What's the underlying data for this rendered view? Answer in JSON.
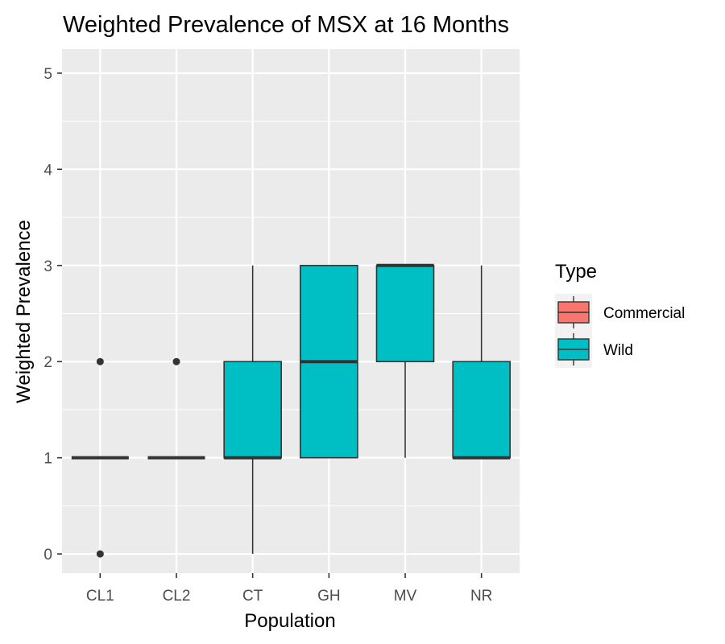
{
  "chart_data": {
    "type": "boxplot",
    "title": "Weighted Prevalence of MSX at 16 Months",
    "xlabel": "Population",
    "ylabel": "Weighted Prevalence",
    "ylim": [
      -0.2,
      5.25
    ],
    "yticks": [
      0,
      1,
      2,
      3,
      4,
      5
    ],
    "categories": [
      "CL1",
      "CL2",
      "CT",
      "GH",
      "MV",
      "NR"
    ],
    "grid": true,
    "legend": {
      "title": "Type",
      "position": "right",
      "entries": [
        {
          "label": "Commercial",
          "color": "#F8766D"
        },
        {
          "label": "Wild",
          "color": "#00BFC4"
        }
      ]
    },
    "boxes": [
      {
        "category": "CL1",
        "type": "Wild",
        "lower_whisker": 1,
        "q1": 1,
        "median": 1,
        "q3": 1,
        "upper_whisker": 1,
        "outliers": [
          0,
          2
        ]
      },
      {
        "category": "CL2",
        "type": "Wild",
        "lower_whisker": 1,
        "q1": 1,
        "median": 1,
        "q3": 1,
        "upper_whisker": 1,
        "outliers": [
          2
        ]
      },
      {
        "category": "CT",
        "type": "Wild",
        "lower_whisker": 0,
        "q1": 1,
        "median": 1,
        "q3": 2,
        "upper_whisker": 3,
        "outliers": []
      },
      {
        "category": "GH",
        "type": "Wild",
        "lower_whisker": 1,
        "q1": 1,
        "median": 2,
        "q3": 3,
        "upper_whisker": 3,
        "outliers": []
      },
      {
        "category": "MV",
        "type": "Wild",
        "lower_whisker": 1,
        "q1": 2,
        "median": 3,
        "q3": 3,
        "upper_whisker": 3,
        "outliers": []
      },
      {
        "category": "NR",
        "type": "Wild",
        "lower_whisker": 1,
        "q1": 1,
        "median": 1,
        "q3": 2,
        "upper_whisker": 3,
        "outliers": []
      }
    ],
    "colors": {
      "panel_background": "#EBEBEB",
      "grid_line": "#FFFFFF",
      "box_outline": "#333333",
      "outlier": "#333333"
    }
  }
}
